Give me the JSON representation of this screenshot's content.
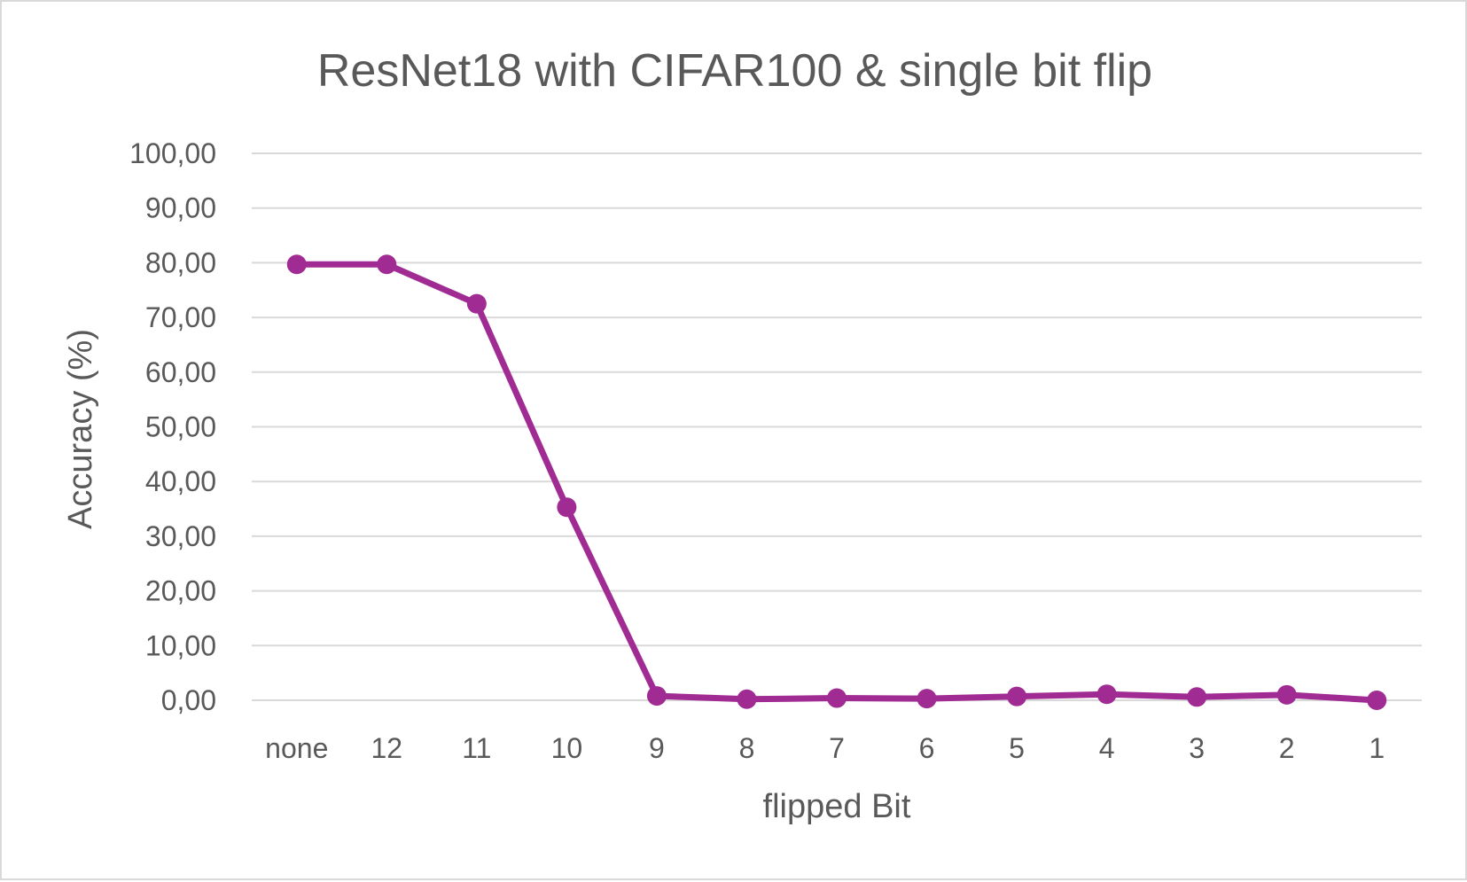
{
  "chart_data": {
    "type": "line",
    "title": "ResNet18 with CIFAR100 & single bit flip",
    "xlabel": "flipped Bit",
    "ylabel": "Accuracy (%)",
    "categories": [
      "none",
      "12",
      "11",
      "10",
      "9",
      "8",
      "7",
      "6",
      "5",
      "4",
      "3",
      "2",
      "1"
    ],
    "series": [
      {
        "values": [
          79.7,
          79.7,
          72.5,
          35.3,
          0.8,
          0.2,
          0.4,
          0.3,
          0.7,
          1.1,
          0.6,
          1.0,
          0.0
        ]
      }
    ],
    "ylim": [
      0,
      100
    ],
    "yticks": [
      "0,00",
      "10,00",
      "20,00",
      "30,00",
      "40,00",
      "50,00",
      "60,00",
      "70,00",
      "80,00",
      "90,00",
      "100,00"
    ],
    "grid": true,
    "line_color": "#a02b93"
  }
}
